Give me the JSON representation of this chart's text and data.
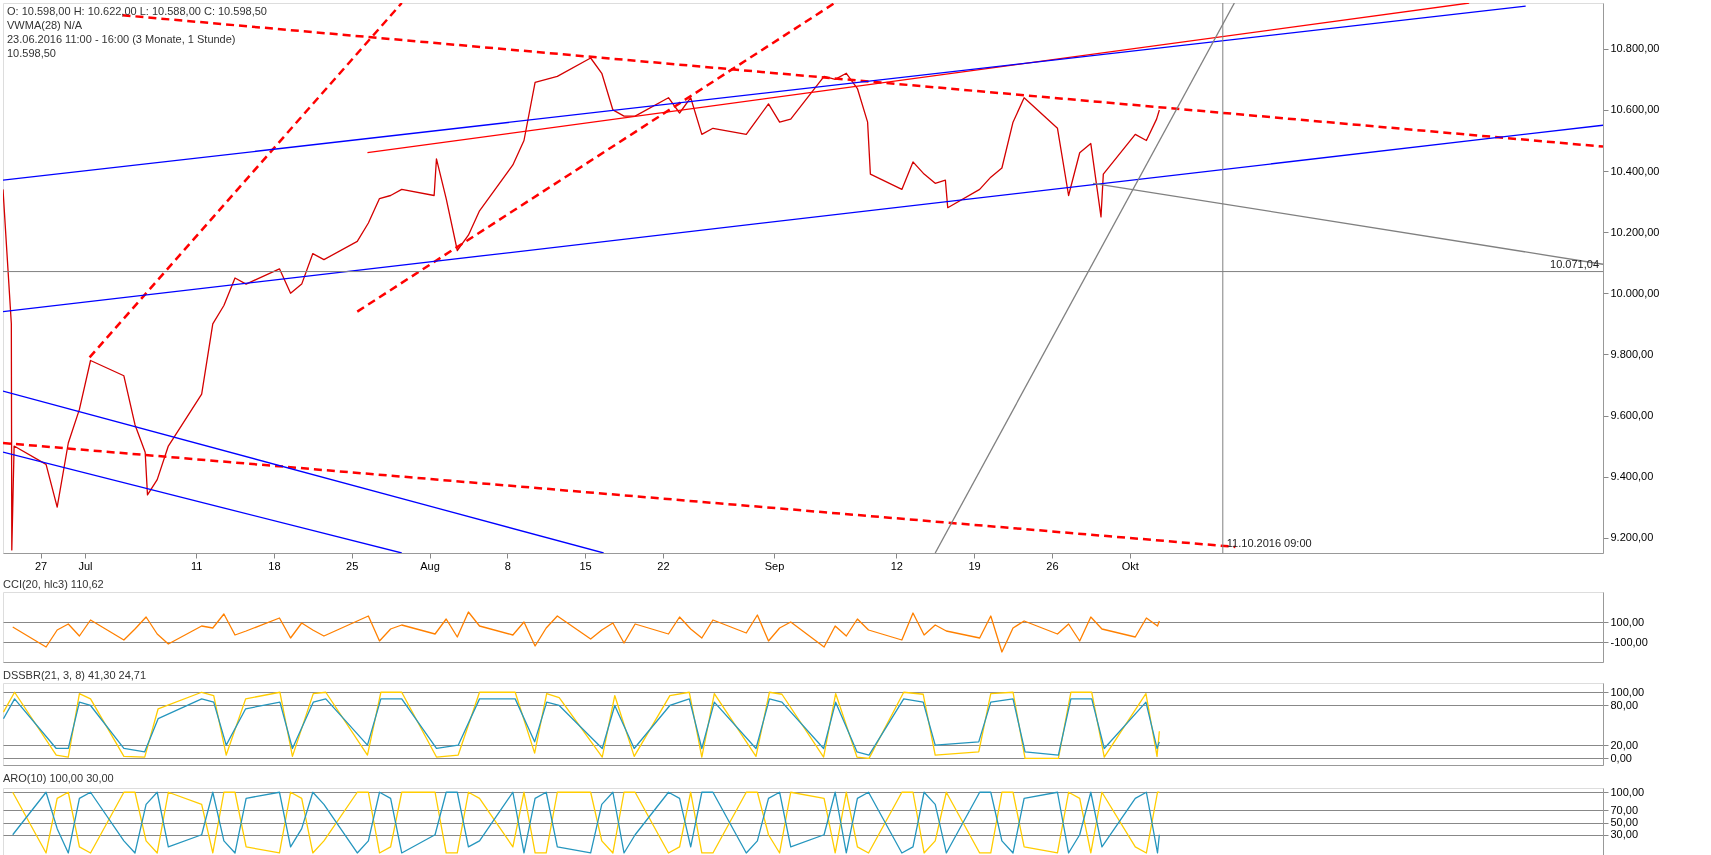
{
  "chart_data": [
    {
      "type": "line",
      "xlim": [
        "2016-06-23T15:00",
        "2016-11-14T14:00"
      ],
      "ylim": [
        9150,
        10950
      ],
      "xticks": [
        {
          "value": "2016-06-27",
          "label": "27"
        },
        {
          "value": "2016-07-01",
          "label": "Jul"
        },
        {
          "value": "2016-07-11",
          "label": "11"
        },
        {
          "value": "2016-07-18",
          "label": "18"
        },
        {
          "value": "2016-07-25",
          "label": "25"
        },
        {
          "value": "2016-08-01",
          "label": "Aug"
        },
        {
          "value": "2016-08-08",
          "label": "8"
        },
        {
          "value": "2016-08-15",
          "label": "15"
        },
        {
          "value": "2016-08-22",
          "label": "22"
        },
        {
          "value": "2016-09-01",
          "label": "Sep"
        },
        {
          "value": "2016-09-12",
          "label": "12"
        },
        {
          "value": "2016-09-19",
          "label": "19"
        },
        {
          "value": "2016-09-26",
          "label": "26"
        },
        {
          "value": "2016-10-03",
          "label": "Okt"
        }
      ],
      "yticks": [
        {
          "value": 9200,
          "label": "9.200,00"
        },
        {
          "value": 9400,
          "label": "9.400,00"
        },
        {
          "value": 9600,
          "label": "9.600,00"
        },
        {
          "value": 9800,
          "label": "9.800,00"
        },
        {
          "value": 10000,
          "label": "10.000,00"
        },
        {
          "value": 10200,
          "label": "10.200,00"
        },
        {
          "value": 10400,
          "label": "10.400,00"
        },
        {
          "value": 10600,
          "label": "10.600,00"
        },
        {
          "value": 10800,
          "label": "10.800,00"
        }
      ],
      "annotations": [
        "O: 10.598,00  H: 10.622,00  L: 10.588,00  C: 10.598,50",
        "VWMA(28)  N/A",
        "23.06.2016 11:00 - 16:00 (3 Monate, 1 Stunde)",
        "10.598,50"
      ],
      "ref_lines": [
        {
          "axis": "y",
          "value": 10071.04,
          "label": "10.071,04",
          "color": "#808080"
        },
        {
          "axis": "x",
          "value": "2016-10-11T09:00",
          "label": "11.10.2016 09:00",
          "color": "#808080"
        }
      ],
      "series": [
        {
          "color": "#d40000",
          "x": [
            "2016-06-23T15:00",
            "2016-06-24T09:00",
            "2016-06-24T10:00",
            "2016-06-24T15:00",
            "2016-06-27T12:00",
            "2016-06-28T12:00",
            "2016-06-29T12:00",
            "2016-06-30T12:00",
            "2016-07-01T12:00",
            "2016-07-04T12:00",
            "2016-07-05T12:00",
            "2016-07-06T10:00",
            "2016-07-06T15:00",
            "2016-07-07T12:00",
            "2016-07-08T12:00",
            "2016-07-11T12:00",
            "2016-07-12T12:00",
            "2016-07-13T12:00",
            "2016-07-14T12:00",
            "2016-07-15T12:00",
            "2016-07-18T12:00",
            "2016-07-19T12:00",
            "2016-07-20T12:00",
            "2016-07-21T12:00",
            "2016-07-22T12:00",
            "2016-07-25T12:00",
            "2016-07-26T12:00",
            "2016-07-27T12:00",
            "2016-07-28T12:00",
            "2016-07-29T12:00",
            "2016-08-01T10:00",
            "2016-08-01T15:00",
            "2016-08-02T12:00",
            "2016-08-03T12:00",
            "2016-08-04T12:00",
            "2016-08-05T12:00",
            "2016-08-08T12:00",
            "2016-08-09T12:00",
            "2016-08-10T12:00",
            "2016-08-11T12:00",
            "2016-08-12T12:00",
            "2016-08-15T12:00",
            "2016-08-16T12:00",
            "2016-08-17T12:00",
            "2016-08-18T12:00",
            "2016-08-19T12:00",
            "2016-08-22T12:00",
            "2016-08-23T12:00",
            "2016-08-24T12:00",
            "2016-08-25T12:00",
            "2016-08-26T12:00",
            "2016-08-29T12:00",
            "2016-08-30T12:00",
            "2016-08-31T12:00",
            "2016-09-01T12:00",
            "2016-09-02T12:00",
            "2016-09-05T12:00",
            "2016-09-06T12:00",
            "2016-09-07T12:00",
            "2016-09-08T12:00",
            "2016-09-09T10:00",
            "2016-09-09T16:00",
            "2016-09-12T12:00",
            "2016-09-13T12:00",
            "2016-09-14T12:00",
            "2016-09-15T12:00",
            "2016-09-16T10:00",
            "2016-09-16T15:00",
            "2016-09-19T12:00",
            "2016-09-20T12:00",
            "2016-09-21T12:00",
            "2016-09-22T12:00",
            "2016-09-23T12:00",
            "2016-09-26T12:00",
            "2016-09-27T12:00",
            "2016-09-28T12:00",
            "2016-09-29T12:00",
            "2016-09-30T10:00",
            "2016-09-30T15:00",
            "2016-10-03T12:00",
            "2016-10-04T12:00",
            "2016-10-05T10:00",
            "2016-10-05T16:00"
          ],
          "values": [
            10340,
            9900,
            9160,
            9500,
            9440,
            9300,
            9510,
            9620,
            9780,
            9730,
            9570,
            9480,
            9340,
            9390,
            9500,
            9670,
            9900,
            9960,
            10050,
            10030,
            10080,
            10000,
            10030,
            10130,
            10110,
            10170,
            10230,
            10310,
            10320,
            10340,
            10320,
            10440,
            10310,
            10140,
            10190,
            10270,
            10420,
            10500,
            10690,
            10700,
            10710,
            10770,
            10720,
            10600,
            10580,
            10580,
            10640,
            10590,
            10640,
            10520,
            10540,
            10520,
            10570,
            10620,
            10560,
            10570,
            10710,
            10700,
            10720,
            10670,
            10560,
            10390,
            10340,
            10430,
            10390,
            10360,
            10370,
            10280,
            10340,
            10380,
            10410,
            10560,
            10640,
            10540,
            10320,
            10460,
            10490,
            10250,
            10390,
            10520,
            10500,
            10570,
            10600
          ]
        },
        {
          "color": "#ff0000",
          "line_style": "dashed",
          "x": [
            "2016-07-04T09:00",
            "2016-11-14T14:00"
          ],
          "values": [
            10910,
            10480
          ]
        },
        {
          "color": "#ff0000",
          "line_style": "dashed",
          "x": [
            "2016-06-23T15:00",
            "2016-10-12T12:00"
          ],
          "values": [
            9510,
            9170
          ]
        },
        {
          "color": "#ff0000",
          "line_style": "dashed",
          "x": [
            "2016-07-01T10:00",
            "2016-07-29T12:00"
          ],
          "values": [
            9790,
            10950
          ]
        },
        {
          "color": "#ff0000",
          "line_style": "dashed",
          "x": [
            "2016-07-25T12:00",
            "2016-09-06T11:00"
          ],
          "values": [
            9940,
            10950
          ]
        },
        {
          "color": "#ff0000",
          "x": [
            "2016-07-26T10:00",
            "2016-11-02T13:00"
          ],
          "values": [
            10460,
            10950
          ]
        },
        {
          "color": "#0000ff",
          "x": [
            "2016-06-23T15:00",
            "2016-11-07T15:00"
          ],
          "values": [
            10370,
            10940
          ]
        },
        {
          "color": "#0000ff",
          "x": [
            "2016-06-23T15:00",
            "2016-11-14T14:00"
          ],
          "values": [
            9940,
            10550
          ]
        },
        {
          "color": "#0000ff",
          "x": [
            "2016-06-23T15:00",
            "2016-08-16T16:00"
          ],
          "values": [
            9680,
            9150
          ]
        },
        {
          "color": "#0000ff",
          "x": [
            "2016-06-23T15:00",
            "2016-07-29T12:00"
          ],
          "values": [
            9480,
            9150
          ]
        },
        {
          "color": "#808080",
          "x": [
            "2016-09-15T12:00",
            "2016-10-12T10:00"
          ],
          "values": [
            9150,
            10950
          ]
        },
        {
          "color": "#808080",
          "x": [
            "2016-09-29T17:00",
            "2016-11-14T14:00"
          ],
          "values": [
            10360,
            10095
          ]
        }
      ]
    },
    {
      "type": "line",
      "title": "CCI(20, hlc3)  110,62",
      "xlim": [
        "2016-06-23T15:00",
        "2016-11-14T14:00"
      ],
      "ylim": [
        -300,
        400
      ],
      "tick_labels": "y",
      "grid": "y",
      "yticks": [
        {
          "value": 100,
          "label": "100,00"
        },
        {
          "value": -100,
          "label": "-100,00"
        }
      ],
      "x": [
        "2016-06-24T12:00",
        "2016-06-27T12:00",
        "2016-06-28T12:00",
        "2016-06-29T12:00",
        "2016-06-30T12:00",
        "2016-07-01T12:00",
        "2016-07-04T12:00",
        "2016-07-05T12:00",
        "2016-07-06T12:00",
        "2016-07-07T12:00",
        "2016-07-08T12:00",
        "2016-07-11T12:00",
        "2016-07-12T12:00",
        "2016-07-13T12:00",
        "2016-07-14T12:00",
        "2016-07-15T12:00",
        "2016-07-18T12:00",
        "2016-07-19T12:00",
        "2016-07-20T12:00",
        "2016-07-21T12:00",
        "2016-07-22T12:00",
        "2016-07-25T12:00",
        "2016-07-26T12:00",
        "2016-07-27T12:00",
        "2016-07-28T12:00",
        "2016-07-29T12:00",
        "2016-08-01T12:00",
        "2016-08-02T12:00",
        "2016-08-03T12:00",
        "2016-08-04T12:00",
        "2016-08-05T12:00",
        "2016-08-08T12:00",
        "2016-08-09T12:00",
        "2016-08-10T12:00",
        "2016-08-11T12:00",
        "2016-08-12T12:00",
        "2016-08-15T12:00",
        "2016-08-16T12:00",
        "2016-08-17T12:00",
        "2016-08-18T12:00",
        "2016-08-19T12:00",
        "2016-08-22T12:00",
        "2016-08-23T12:00",
        "2016-08-24T12:00",
        "2016-08-25T12:00",
        "2016-08-26T12:00",
        "2016-08-29T12:00",
        "2016-08-30T12:00",
        "2016-08-31T12:00",
        "2016-09-01T12:00",
        "2016-09-02T12:00",
        "2016-09-05T12:00",
        "2016-09-06T12:00",
        "2016-09-07T12:00",
        "2016-09-08T12:00",
        "2016-09-09T12:00",
        "2016-09-12T12:00",
        "2016-09-13T12:00",
        "2016-09-14T12:00",
        "2016-09-15T12:00",
        "2016-09-16T12:00",
        "2016-09-19T12:00",
        "2016-09-20T12:00",
        "2016-09-21T12:00",
        "2016-09-22T12:00",
        "2016-09-23T12:00",
        "2016-09-26T12:00",
        "2016-09-27T12:00",
        "2016-09-28T12:00",
        "2016-09-29T12:00",
        "2016-09-30T12:00",
        "2016-10-03T12:00",
        "2016-10-04T12:00",
        "2016-10-05T12:00",
        "2016-10-05T16:00"
      ],
      "series": [
        {
          "color": "#ff8000",
          "values": [
            50,
            -150,
            20,
            80,
            -40,
            120,
            -80,
            30,
            150,
            -20,
            -120,
            60,
            40,
            180,
            -30,
            10,
            140,
            -60,
            90,
            20,
            -40,
            110,
            160,
            -90,
            30,
            70,
            -20,
            130,
            -50,
            200,
            60,
            -30,
            100,
            -140,
            40,
            160,
            -70,
            20,
            90,
            -110,
            80,
            -20,
            150,
            30,
            -60,
            120,
            -10,
            170,
            -90,
            40,
            100,
            -150,
            60,
            -40,
            130,
            20,
            -80,
            190,
            -30,
            70,
            10,
            -60,
            160,
            -200,
            40,
            110,
            -20,
            80,
            -90,
            150,
            30,
            -50,
            140,
            60,
            110
          ]
        }
      ]
    },
    {
      "type": "line",
      "title": "DSSBR(21, 3, 8)  41,30  24,71",
      "xlim": [
        "2016-06-23T15:00",
        "2016-11-14T14:00"
      ],
      "ylim": [
        -10,
        114
      ],
      "tick_labels": "y",
      "grid": "y",
      "yticks": [
        {
          "value": 100,
          "label": "100,00"
        },
        {
          "value": 80,
          "label": "80,00"
        },
        {
          "value": 20,
          "label": "20,00"
        },
        {
          "value": 0,
          "label": "0,00"
        }
      ],
      "x": [
        "2016-06-23T16:00",
        "2016-06-24T16:00",
        "2016-06-28T10:00",
        "2016-06-29T12:00",
        "2016-06-30T12:00",
        "2016-07-01T12:00",
        "2016-07-04T12:00",
        "2016-07-06T09:00",
        "2016-07-07T14:00",
        "2016-07-11T12:00",
        "2016-07-12T14:00",
        "2016-07-13T17:00",
        "2016-07-15T11:00",
        "2016-07-18T13:00",
        "2016-07-19T16:00",
        "2016-07-21T13:00",
        "2016-07-22T16:00",
        "2016-07-26T10:00",
        "2016-07-27T15:00",
        "2016-07-29T12:00",
        "2016-08-01T15:00",
        "2016-08-03T14:00",
        "2016-08-05T12:00",
        "2016-08-08T17:00",
        "2016-08-10T11:00",
        "2016-08-11T13:00",
        "2016-08-12T16:00",
        "2016-08-16T13:00",
        "2016-08-17T16:00",
        "2016-08-19T10:00",
        "2016-08-22T15:00",
        "2016-08-24T09:00",
        "2016-08-25T12:00",
        "2016-08-26T15:00",
        "2016-08-30T09:00",
        "2016-08-31T14:00",
        "2016-09-01T17:00",
        "2016-09-05T11:00",
        "2016-09-06T13:00",
        "2016-09-08T11:00",
        "2016-09-09T13:00",
        "2016-09-12T16:00",
        "2016-09-14T10:00",
        "2016-09-15T12:00",
        "2016-09-19T10:00",
        "2016-09-20T12:00",
        "2016-09-22T12:00",
        "2016-09-23T14:00",
        "2016-09-26T14:00",
        "2016-09-27T17:00",
        "2016-09-29T14:00",
        "2016-09-30T17:00",
        "2016-10-04T11:00",
        "2016-10-05T11:00",
        "2016-10-05T16:00"
      ],
      "series": [
        {
          "color": "#ffcc00",
          "values": [
            70,
            100,
            5,
            2,
            98,
            90,
            3,
            2,
            75,
            100,
            95,
            5,
            90,
            100,
            3,
            98,
            100,
            5,
            100,
            100,
            2,
            5,
            100,
            100,
            8,
            98,
            92,
            2,
            95,
            3,
            95,
            100,
            2,
            98,
            3,
            100,
            97,
            2,
            98,
            2,
            0,
            100,
            97,
            5,
            10,
            98,
            100,
            0,
            0,
            100,
            100,
            2,
            98,
            3,
            41
          ]
        },
        {
          "color": "#2596be",
          "values": [
            60,
            90,
            15,
            15,
            85,
            80,
            15,
            10,
            60,
            90,
            85,
            20,
            75,
            85,
            15,
            85,
            90,
            20,
            90,
            90,
            15,
            20,
            90,
            90,
            25,
            85,
            80,
            15,
            80,
            15,
            80,
            90,
            15,
            85,
            15,
            90,
            85,
            15,
            85,
            10,
            5,
            90,
            85,
            20,
            25,
            85,
            90,
            10,
            5,
            90,
            90,
            15,
            85,
            15,
            25
          ]
        }
      ]
    },
    {
      "type": "line",
      "title": "ARO(10)  100,00  30,00",
      "xlim": [
        "2016-06-23T15:00",
        "2016-11-14T14:00"
      ],
      "ylim": [
        -5,
        107
      ],
      "tick_labels": "y",
      "grid": "y",
      "yticks": [
        {
          "value": 100,
          "label": "100,00"
        },
        {
          "value": 70,
          "label": "70,00"
        },
        {
          "value": 50,
          "label": "50,00"
        },
        {
          "value": 30,
          "label": "30,00"
        }
      ],
      "x": [
        "2016-06-24T12:00",
        "2016-06-27T12:00",
        "2016-06-28T12:00",
        "2016-06-29T12:00",
        "2016-06-30T12:00",
        "2016-07-01T12:00",
        "2016-07-04T12:00",
        "2016-07-05T12:00",
        "2016-07-06T12:00",
        "2016-07-07T12:00",
        "2016-07-08T12:00",
        "2016-07-11T12:00",
        "2016-07-12T12:00",
        "2016-07-13T12:00",
        "2016-07-14T12:00",
        "2016-07-15T12:00",
        "2016-07-18T12:00",
        "2016-07-19T12:00",
        "2016-07-20T12:00",
        "2016-07-21T12:00",
        "2016-07-22T12:00",
        "2016-07-25T12:00",
        "2016-07-26T12:00",
        "2016-07-27T12:00",
        "2016-07-28T12:00",
        "2016-07-29T12:00",
        "2016-08-01T12:00",
        "2016-08-02T12:00",
        "2016-08-03T12:00",
        "2016-08-04T12:00",
        "2016-08-05T12:00",
        "2016-08-08T12:00",
        "2016-08-09T12:00",
        "2016-08-10T12:00",
        "2016-08-11T12:00",
        "2016-08-12T12:00",
        "2016-08-15T12:00",
        "2016-08-16T12:00",
        "2016-08-17T12:00",
        "2016-08-18T12:00",
        "2016-08-19T12:00",
        "2016-08-22T12:00",
        "2016-08-23T12:00",
        "2016-08-24T12:00",
        "2016-08-25T12:00",
        "2016-08-26T12:00",
        "2016-08-29T12:00",
        "2016-08-30T12:00",
        "2016-08-31T12:00",
        "2016-09-01T12:00",
        "2016-09-02T12:00",
        "2016-09-05T12:00",
        "2016-09-06T12:00",
        "2016-09-07T12:00",
        "2016-09-08T12:00",
        "2016-09-09T12:00",
        "2016-09-12T12:00",
        "2016-09-13T12:00",
        "2016-09-14T12:00",
        "2016-09-15T12:00",
        "2016-09-16T12:00",
        "2016-09-19T12:00",
        "2016-09-20T12:00",
        "2016-09-21T12:00",
        "2016-09-22T12:00",
        "2016-09-23T12:00",
        "2016-09-26T12:00",
        "2016-09-27T12:00",
        "2016-09-28T12:00",
        "2016-09-29T12:00",
        "2016-09-30T12:00",
        "2016-10-03T12:00",
        "2016-10-04T12:00",
        "2016-10-05T12:00",
        "2016-10-05T16:00"
      ],
      "series": [
        {
          "color": "#ffcc00",
          "values": [
            100,
            0,
            90,
            100,
            10,
            0,
            100,
            100,
            20,
            0,
            100,
            80,
            0,
            100,
            100,
            10,
            0,
            100,
            90,
            0,
            20,
            100,
            100,
            0,
            10,
            100,
            100,
            0,
            0,
            100,
            90,
            10,
            100,
            0,
            0,
            100,
            100,
            20,
            0,
            100,
            100,
            0,
            10,
            100,
            0,
            0,
            100,
            100,
            30,
            0,
            100,
            90,
            0,
            100,
            10,
            0,
            100,
            100,
            0,
            20,
            100,
            0,
            0,
            100,
            100,
            10,
            0,
            100,
            90,
            0,
            100,
            10,
            0,
            100,
            100
          ]
        },
        {
          "color": "#2596be",
          "values": [
            30,
            100,
            40,
            0,
            90,
            100,
            20,
            0,
            80,
            100,
            10,
            30,
            100,
            20,
            0,
            90,
            100,
            10,
            40,
            100,
            80,
            0,
            20,
            100,
            90,
            0,
            30,
            100,
            100,
            10,
            20,
            100,
            0,
            90,
            100,
            10,
            0,
            80,
            100,
            0,
            30,
            100,
            90,
            10,
            100,
            100,
            0,
            20,
            90,
            100,
            10,
            30,
            100,
            0,
            90,
            100,
            0,
            10,
            100,
            80,
            0,
            100,
            100,
            20,
            0,
            90,
            100,
            0,
            30,
            100,
            10,
            90,
            100,
            0,
            30
          ]
        }
      ]
    }
  ]
}
